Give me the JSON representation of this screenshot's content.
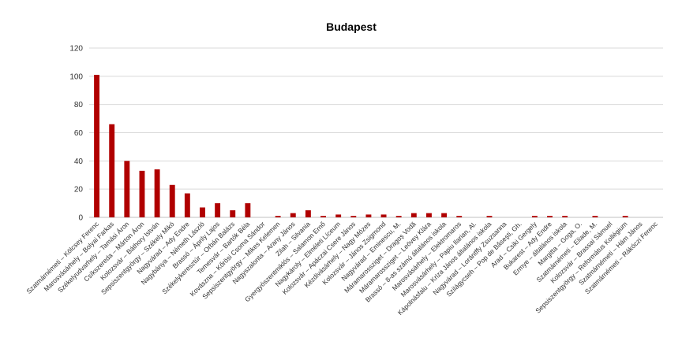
{
  "chart_data": {
    "type": "bar",
    "title": "Budapest",
    "xlabel": "",
    "ylabel": "",
    "ylim": [
      0,
      120
    ],
    "yticks": [
      0,
      20,
      40,
      60,
      80,
      100,
      120
    ],
    "grid": true,
    "bar_color": "#b00000",
    "categories": [
      "Szatmárnémeti – Kölcsey Ferenc",
      "Marosvásárhely – Bolyai Farkas",
      "Székelyudvarhely – Tamási Áron",
      "Csíkszereda – Márton Áron",
      "Kolozsvár – Báthory István",
      "Sepsiszentgyörgy – Székely Mikó",
      "Nagyvárad – Ady Endre",
      "Nagybánya – Németh László",
      "Brassó – Áprily Lajos",
      "Székelykeresztúr – Orbán Balázs",
      "Temesvár – Bartók Béla",
      "Kovászna – Kőrösi Csoma Sándor",
      "Sepsiszentgyörgy – Mikes Kelemen",
      "Nagyszalonta – Arany János",
      "Zilah – Silvania",
      "Gyergyószentmiklós – Salamon Ernő",
      "Nagykároly – Elméleti Líceum",
      "Kolozsvár – Apáczai Csere János",
      "Kézdivásárhely – Nagy Mózes",
      "Kolozsvár – János Zsigmond",
      "Nagyvárad – Eminescu, M.",
      "Máramarossziget – Dragoș Vodă",
      "Máramarossziget – Leövey Klára",
      "Brassó – 8-as számú általános iskola",
      "Marosvásárhely – Elektromaros",
      "Marosvásárhely – Papiu Ilarian, Al.",
      "Kápolnásfalu – Kriza János általános iskola",
      "Nagyvárad – Lorántffy Zsuzsanna",
      "Szilágycseh – Pop de Băseşti, Gh.",
      "Arad – Csiki Gergely",
      "Bukarest – Ady Endre",
      "Ermye – általános iskola",
      "Margitta – Goga, O.",
      "Szatmárnémeti – Eliade, M.",
      "Kolozsvár – Brassai Sámuel",
      "Sepsiszentgyörgy – Református Kollégium",
      "Szatmárnémeti – Hám János",
      "Szatmárnémeti – Rákóczi Ferenc"
    ],
    "values": [
      101,
      66,
      40,
      33,
      34,
      23,
      17,
      7,
      10,
      5,
      10,
      0,
      1,
      3,
      5,
      1,
      2,
      1,
      2,
      2,
      1,
      3,
      3,
      3,
      1,
      0,
      1,
      0,
      0,
      1,
      1,
      1,
      0,
      1,
      0,
      1,
      0,
      0
    ]
  }
}
